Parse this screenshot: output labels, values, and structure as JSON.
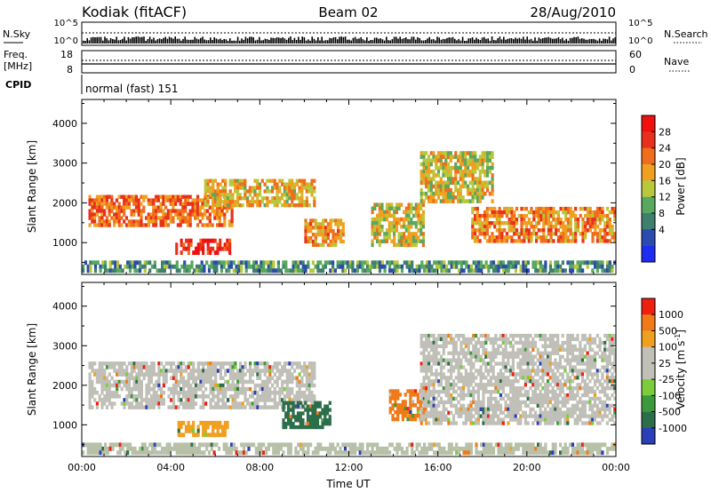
{
  "header": {
    "station": "Kodiak (fitACF)",
    "beam": "Beam 02",
    "date": "28/Aug/2010"
  },
  "summary_panels": {
    "nsky": {
      "label": "N.Sky",
      "ticks": [
        "10^5",
        "10^0"
      ]
    },
    "nsearch": {
      "label": "N.Search",
      "ticks": [
        "10^5",
        "10^0"
      ]
    },
    "freq": {
      "label_line1": "Freq.",
      "label_line2": "[MHz]",
      "ticks": [
        "18",
        "8"
      ]
    },
    "nave": {
      "label": "Nave",
      "ticks": [
        "60",
        "0"
      ]
    },
    "cpid": {
      "label": "CPID",
      "value": "normal (fast) 151"
    }
  },
  "chart_data": [
    {
      "type": "heatmap",
      "name": "power",
      "ylabel": "Slant Range [km]",
      "y_ticks": [
        1000,
        2000,
        3000,
        4000
      ],
      "ylim": [
        200,
        4600
      ],
      "x_ticks": [
        "00:00",
        "04:00",
        "08:00",
        "12:00",
        "16:00",
        "20:00",
        "00:00"
      ],
      "xlim_hours": [
        0,
        24
      ],
      "colorbar": {
        "label": "Power [dB]",
        "ticks": [
          "28",
          "24",
          "20",
          "16",
          "12",
          "8",
          "4"
        ],
        "colors": [
          "#1f2df0",
          "#2c4bb0",
          "#3f7f70",
          "#58a860",
          "#b8c83a",
          "#f0a020",
          "#f06d1e",
          "#e8301c",
          "#f01010"
        ]
      },
      "regions": [
        {
          "t0": 0.3,
          "t1": 6.8,
          "r0": 1400,
          "r1": 2200,
          "level": 0.75
        },
        {
          "t0": 5.5,
          "t1": 10.5,
          "r0": 1900,
          "r1": 2600,
          "level": 0.6
        },
        {
          "t0": 4.2,
          "t1": 6.7,
          "r0": 700,
          "r1": 1100,
          "level": 0.95
        },
        {
          "t0": 10.0,
          "t1": 11.8,
          "r0": 900,
          "r1": 1600,
          "level": 0.65
        },
        {
          "t0": 13.0,
          "t1": 15.4,
          "r0": 900,
          "r1": 2000,
          "level": 0.55
        },
        {
          "t0": 15.2,
          "t1": 18.5,
          "r0": 2000,
          "r1": 3300,
          "level": 0.55
        },
        {
          "t0": 17.5,
          "t1": 24.0,
          "r0": 1000,
          "r1": 1900,
          "level": 0.7
        },
        {
          "t0": 0.0,
          "t1": 24.0,
          "r0": 250,
          "r1": 550,
          "level": 0.3
        }
      ]
    },
    {
      "type": "heatmap",
      "name": "velocity",
      "ylabel": "Slant Range [km]",
      "y_ticks": [
        1000,
        2000,
        3000,
        4000
      ],
      "ylim": [
        200,
        4600
      ],
      "x_ticks": [
        "00:00",
        "04:00",
        "08:00",
        "12:00",
        "16:00",
        "20:00",
        "00:00"
      ],
      "xlim_hours": [
        0,
        24
      ],
      "xlabel": "Time UT",
      "colorbar": {
        "label": "Velocity [m s",
        "label_sup": "-1",
        "label_close": "]",
        "ticks": [
          "1000",
          "500",
          "100",
          "25",
          "-25",
          "-100",
          "-500",
          "-1000"
        ],
        "colors": [
          "#2a3fb8",
          "#2d6e4a",
          "#3c9a3c",
          "#7ccc3c",
          "#c0c0b8",
          "#c0c0b8",
          "#f0a020",
          "#f07a18",
          "#ee2010"
        ]
      },
      "regions": [
        {
          "t0": 0.3,
          "t1": 10.5,
          "r0": 1400,
          "r1": 2600,
          "color": "#c0c0b8"
        },
        {
          "t0": 9.0,
          "t1": 11.2,
          "r0": 900,
          "r1": 1600,
          "color": "#2d6e4a"
        },
        {
          "t0": 13.8,
          "t1": 15.5,
          "r0": 1100,
          "r1": 1900,
          "color": "#f07a18"
        },
        {
          "t0": 15.2,
          "t1": 24.0,
          "r0": 1000,
          "r1": 3300,
          "color": "#c0c0b8"
        },
        {
          "t0": 4.3,
          "t1": 6.6,
          "r0": 700,
          "r1": 1100,
          "color": "#f0a020"
        },
        {
          "t0": 0.0,
          "t1": 24.0,
          "r0": 250,
          "r1": 550,
          "color": "#b8c0a8"
        }
      ]
    }
  ]
}
